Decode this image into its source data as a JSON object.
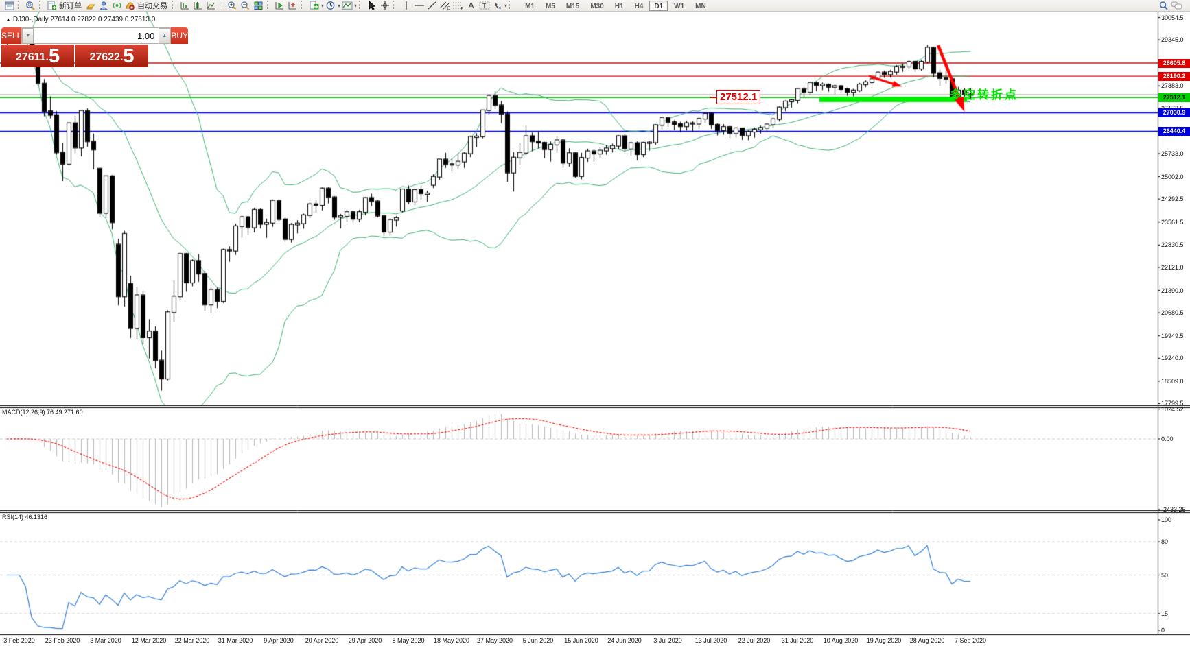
{
  "toolbar": {
    "new_order": "新订单",
    "auto_trading": "自动交易",
    "timeframes": [
      "M1",
      "M5",
      "M15",
      "M30",
      "H1",
      "H4",
      "D1",
      "W1",
      "MN"
    ],
    "active_timeframe": "D1"
  },
  "chart_header": {
    "title": "DJ30-,Daily  27614.0 27822.0 27439.0 27613.0"
  },
  "trade_panel": {
    "sell_label": "SELL",
    "buy_label": "BUY",
    "volume": "1.00",
    "sell_price": "27611.",
    "sell_price_big": "5",
    "buy_price": "27622.",
    "buy_price_big": "5"
  },
  "annotations": {
    "price_callout": "27512.1",
    "turning_point": "多空转折点",
    "trend_arrow": {
      "from": [
        1367,
        66
      ],
      "to": [
        1401,
        152
      ]
    },
    "small_arrow": {
      "from": [
        1266,
        111
      ],
      "to": [
        1307,
        124
      ]
    },
    "highlight_rect": {
      "from_index": 132,
      "to_index": 155,
      "top_price": 27540,
      "bottom_price": 27370,
      "color": "#00ee00"
    }
  },
  "indicators": {
    "macd_label": "MACD(12,26,9) 76.49 271.60",
    "rsi_label": "RSI(14) 46.1316"
  },
  "axes": {
    "price_ticks": [
      "30054.5",
      "29345.0",
      "27883.0",
      "27173.5",
      "25733.0",
      "25002.0",
      "24292.5",
      "23561.5",
      "22830.5",
      "22121.0",
      "21390.0",
      "20680.5",
      "19949.5",
      "19240.0",
      "18509.0",
      "17799.5"
    ],
    "price_badges": [
      {
        "label": "28605.8",
        "v": 28605.8,
        "bg": "#e00000",
        "fg": "#ffffff"
      },
      {
        "label": "28190.2",
        "v": 28190.2,
        "bg": "#e00000",
        "fg": "#ffffff"
      },
      {
        "label": "27512.1",
        "v": 27512.1,
        "bg": "#00d200",
        "fg": "#000000"
      },
      {
        "label": "27030.9",
        "v": 27030.9,
        "bg": "#0000dd",
        "fg": "#ffffff"
      },
      {
        "label": "26440.4",
        "v": 26440.4,
        "bg": "#0000dd",
        "fg": "#ffffff"
      }
    ],
    "macd_ticks": [
      {
        "label": "1024.52",
        "v": 1024.52
      },
      {
        "label": "0.00",
        "v": 0
      },
      {
        "label": "-2433.25",
        "v": -2433.25
      }
    ],
    "rsi_ticks": [
      {
        "label": "100",
        "v": 100
      },
      {
        "label": "80",
        "v": 80
      },
      {
        "label": "50",
        "v": 50
      },
      {
        "label": "15",
        "v": 15
      },
      {
        "label": "0",
        "v": 0
      }
    ],
    "dates": [
      "3 Feb 2020",
      "23 Feb 2020",
      "3 Mar 2020",
      "12 Mar 2020",
      "22 Mar 2020",
      "31 Mar 2020",
      "9 Apr 2020",
      "20 Apr 2020",
      "29 Apr 2020",
      "8 May 2020",
      "18 May 2020",
      "27 May 2020",
      "5 Jun 2020",
      "15 Jun 2020",
      "24 Jun 2020",
      "3 Jul 2020",
      "13 Jul 2020",
      "22 Jul 2020",
      "31 Jul 2020",
      "10 Aug 2020",
      "19 Aug 2020",
      "28 Aug 2020",
      "7 Sep 2020"
    ]
  },
  "chart_data": {
    "type": "candlestick",
    "symbol": "DJ30-",
    "period": "Daily",
    "grid": "off",
    "price_axis_range": [
      17799.5,
      30054.5
    ],
    "macd_axis_range": [
      -2433.25,
      1024.52
    ],
    "rsi_axis_range": [
      0,
      100
    ],
    "overlays": {
      "bollinger_period": 20,
      "bollinger_dev": 2,
      "macd_params": [
        12,
        26,
        9
      ],
      "rsi_period": 14
    },
    "hlines": [
      {
        "price": 28605.8,
        "color": "#e00000",
        "w": 1.4
      },
      {
        "price": 28190.2,
        "color": "#e00000",
        "w": 1.4
      },
      {
        "price": 27611.5,
        "color": "#b4b4b4",
        "w": 1.2
      },
      {
        "price": 27512.1,
        "color": "#00cc00",
        "w": 1.4
      },
      {
        "price": 27030.9,
        "color": "#0000e0",
        "w": 1.7
      },
      {
        "price": 26440.4,
        "color": "#0000e0",
        "w": 1.7
      }
    ],
    "ohlc": [
      [
        29280,
        29460,
        29190,
        29380
      ],
      [
        29380,
        29520,
        29300,
        29440
      ],
      [
        29440,
        29560,
        29350,
        29410
      ],
      [
        29410,
        29480,
        29240,
        29350
      ],
      [
        29350,
        29400,
        28900,
        28990
      ],
      [
        28700,
        28750,
        27880,
        27960
      ],
      [
        27960,
        28100,
        26920,
        27080
      ],
      [
        27080,
        27550,
        26850,
        26960
      ],
      [
        26960,
        27080,
        25700,
        25770
      ],
      [
        25770,
        26080,
        24860,
        25410
      ],
      [
        25410,
        26710,
        25350,
        26700
      ],
      [
        26700,
        26930,
        25740,
        25920
      ],
      [
        25920,
        27100,
        25650,
        27090
      ],
      [
        27090,
        27170,
        25950,
        26120
      ],
      [
        26120,
        26370,
        25230,
        25860
      ],
      [
        25260,
        25290,
        23710,
        23850
      ],
      [
        23850,
        25030,
        23690,
        25020
      ],
      [
        25020,
        25050,
        23330,
        23550
      ],
      [
        22850,
        23030,
        20920,
        21200
      ],
      [
        21200,
        23280,
        20880,
        23190
      ],
      [
        21600,
        21860,
        19880,
        20190
      ],
      [
        20190,
        21500,
        19830,
        21240
      ],
      [
        21240,
        21380,
        19680,
        19900
      ],
      [
        19900,
        20480,
        19230,
        20090
      ],
      [
        20090,
        20250,
        18920,
        19170
      ],
      [
        19170,
        19480,
        18210,
        18590
      ],
      [
        18590,
        20760,
        18540,
        20700
      ],
      [
        20700,
        21720,
        20390,
        21200
      ],
      [
        21200,
        22600,
        21080,
        22550
      ],
      [
        22550,
        22580,
        21350,
        21640
      ],
      [
        21640,
        22380,
        21520,
        22330
      ],
      [
        22330,
        22540,
        21660,
        21920
      ],
      [
        21920,
        22010,
        20740,
        20940
      ],
      [
        20940,
        21480,
        20660,
        21410
      ],
      [
        21410,
        21480,
        20830,
        21050
      ],
      [
        21050,
        22720,
        20990,
        22680
      ],
      [
        22680,
        22790,
        22300,
        22650
      ],
      [
        22650,
        23510,
        22520,
        23430
      ],
      [
        23430,
        23760,
        23070,
        23720
      ],
      [
        23720,
        23750,
        23150,
        23390
      ],
      [
        23390,
        24010,
        23230,
        23950
      ],
      [
        23950,
        23990,
        23360,
        23500
      ],
      [
        23500,
        23670,
        23060,
        23540
      ],
      [
        23540,
        24270,
        23410,
        24240
      ],
      [
        24240,
        24280,
        23570,
        23650
      ],
      [
        23650,
        23700,
        22940,
        23020
      ],
      [
        23020,
        23530,
        22910,
        23480
      ],
      [
        23480,
        23620,
        23200,
        23520
      ],
      [
        23520,
        23830,
        23350,
        23780
      ],
      [
        23780,
        24180,
        23680,
        24130
      ],
      [
        24130,
        24250,
        23860,
        24100
      ],
      [
        24100,
        24660,
        23930,
        24630
      ],
      [
        24630,
        24680,
        24150,
        24350
      ],
      [
        24350,
        24380,
        23630,
        23720
      ],
      [
        23720,
        23820,
        23360,
        23750
      ],
      [
        23750,
        23960,
        23570,
        23880
      ],
      [
        23880,
        23910,
        23550,
        23660
      ],
      [
        23660,
        23950,
        23560,
        23880
      ],
      [
        23880,
        24350,
        23780,
        24330
      ],
      [
        24330,
        24460,
        24070,
        24220
      ],
      [
        24220,
        24250,
        23710,
        23760
      ],
      [
        23760,
        23790,
        23120,
        23250
      ],
      [
        23250,
        23680,
        23130,
        23630
      ],
      [
        23630,
        23750,
        23420,
        23690
      ],
      [
        23920,
        24620,
        23870,
        24600
      ],
      [
        24600,
        24720,
        24130,
        24210
      ],
      [
        24210,
        24600,
        24090,
        24580
      ],
      [
        24580,
        24720,
        24280,
        24470
      ],
      [
        24470,
        24560,
        24200,
        24470
      ],
      [
        24740,
        25080,
        24640,
        25000
      ],
      [
        25000,
        25560,
        24900,
        25550
      ],
      [
        25550,
        25760,
        25280,
        25400
      ],
      [
        25400,
        25580,
        25180,
        25380
      ],
      [
        25380,
        25760,
        25230,
        25480
      ],
      [
        25480,
        25780,
        25280,
        25740
      ],
      [
        25740,
        26300,
        25620,
        26270
      ],
      [
        26270,
        26380,
        25940,
        26280
      ],
      [
        26280,
        27120,
        26220,
        27110
      ],
      [
        27110,
        27620,
        26960,
        27570
      ],
      [
        27570,
        27710,
        27150,
        27270
      ],
      [
        27270,
        27400,
        26700,
        26990
      ],
      [
        26990,
        27070,
        24840,
        25130
      ],
      [
        25130,
        25780,
        24530,
        25610
      ],
      [
        25610,
        26070,
        25370,
        25760
      ],
      [
        25760,
        26610,
        25680,
        26290
      ],
      [
        26290,
        26400,
        25810,
        26120
      ],
      [
        26120,
        26450,
        25900,
        26080
      ],
      [
        26080,
        26110,
        25590,
        25870
      ],
      [
        25870,
        26120,
        25480,
        26020
      ],
      [
        26020,
        26290,
        25760,
        26160
      ],
      [
        26160,
        26190,
        25280,
        25440
      ],
      [
        25440,
        25900,
        25320,
        25750
      ],
      [
        25750,
        25770,
        24970,
        25020
      ],
      [
        25020,
        25760,
        24920,
        25600
      ],
      [
        25600,
        25890,
        25470,
        25810
      ],
      [
        25810,
        25880,
        25480,
        25730
      ],
      [
        25730,
        25950,
        25600,
        25830
      ],
      [
        25830,
        26000,
        25700,
        25900
      ],
      [
        25900,
        26050,
        25770,
        25980
      ],
      [
        25980,
        26310,
        25870,
        26290
      ],
      [
        26290,
        26350,
        25800,
        25890
      ],
      [
        25890,
        26110,
        25670,
        26070
      ],
      [
        26070,
        26120,
        25520,
        25710
      ],
      [
        25710,
        26110,
        25620,
        26080
      ],
      [
        26080,
        26130,
        25830,
        26090
      ],
      [
        26090,
        26660,
        26010,
        26640
      ],
      [
        26640,
        26890,
        26500,
        26870
      ],
      [
        26870,
        26910,
        26580,
        26730
      ],
      [
        26730,
        26790,
        26480,
        26670
      ],
      [
        26670,
        26740,
        26410,
        26600
      ],
      [
        26600,
        26780,
        26470,
        26700
      ],
      [
        26700,
        26760,
        26430,
        26680
      ],
      [
        26680,
        26870,
        26520,
        26840
      ],
      [
        26840,
        27050,
        26710,
        27000
      ],
      [
        27000,
        27040,
        26520,
        26650
      ],
      [
        26650,
        26690,
        26310,
        26470
      ],
      [
        26470,
        26670,
        26330,
        26580
      ],
      [
        26580,
        26620,
        26230,
        26380
      ],
      [
        26380,
        26580,
        26250,
        26540
      ],
      [
        26540,
        26560,
        26170,
        26310
      ],
      [
        26310,
        26480,
        26160,
        26430
      ],
      [
        26430,
        26560,
        26240,
        26500
      ],
      [
        26500,
        26620,
        26370,
        26550
      ],
      [
        26550,
        26710,
        26420,
        26660
      ],
      [
        26660,
        26880,
        26550,
        26830
      ],
      [
        26830,
        27230,
        26750,
        27200
      ],
      [
        27200,
        27420,
        27080,
        27390
      ],
      [
        27390,
        27470,
        27190,
        27430
      ],
      [
        27430,
        27810,
        27330,
        27790
      ],
      [
        27790,
        27850,
        27520,
        27690
      ],
      [
        27690,
        28010,
        27590,
        27980
      ],
      [
        27980,
        28020,
        27720,
        27900
      ],
      [
        27900,
        27990,
        27750,
        27930
      ],
      [
        27930,
        27960,
        27700,
        27850
      ],
      [
        27850,
        27920,
        27620,
        27880
      ],
      [
        27880,
        27910,
        27680,
        27780
      ],
      [
        27780,
        27830,
        27570,
        27690
      ],
      [
        27690,
        27790,
        27550,
        27740
      ],
      [
        27740,
        27980,
        27690,
        27930
      ],
      [
        27930,
        28060,
        27840,
        28000
      ],
      [
        28000,
        28190,
        27930,
        28100
      ],
      [
        28100,
        28340,
        28050,
        28310
      ],
      [
        28310,
        28370,
        28140,
        28250
      ],
      [
        28250,
        28390,
        28150,
        28330
      ],
      [
        28330,
        28540,
        28240,
        28490
      ],
      [
        28490,
        28580,
        28330,
        28500
      ],
      [
        28500,
        28690,
        28420,
        28650
      ],
      [
        28650,
        28680,
        28340,
        28430
      ],
      [
        28430,
        28700,
        28360,
        28650
      ],
      [
        28650,
        29180,
        28600,
        29100
      ],
      [
        29100,
        29130,
        28150,
        28290
      ],
      [
        28290,
        28400,
        27880,
        28130
      ],
      [
        28130,
        28350,
        27950,
        28100
      ],
      [
        28100,
        28160,
        27450,
        27500
      ],
      [
        27500,
        27850,
        27380,
        27740
      ],
      [
        27740,
        27820,
        27430,
        27613
      ],
      [
        27614,
        27822,
        27439,
        27613
      ]
    ]
  }
}
